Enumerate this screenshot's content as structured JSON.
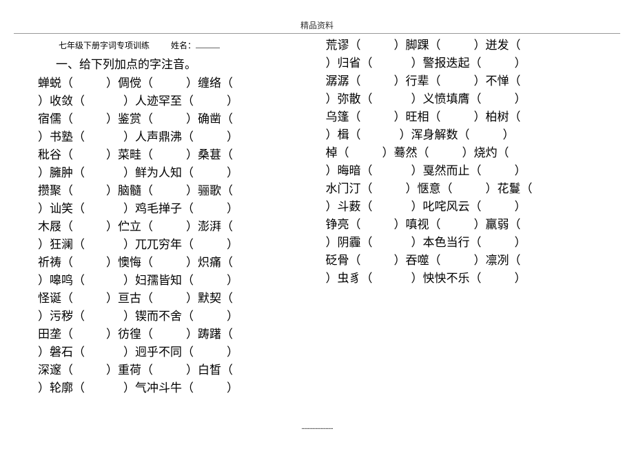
{
  "header": "精品资料",
  "title": "七年级下册字词专项训练",
  "name_label": "姓名：",
  "section_heading": "一、给下列加点的字注音。",
  "footer_dots": "..........................",
  "left_lines": [
    [
      "蝉蜕（",
      "）倜傥（",
      "）缠络（"
    ],
    [
      "）收敛（",
      "）人迹罕至（",
      "）"
    ],
    [
      "宿儒（",
      "）鉴赏（",
      "）确凿（"
    ],
    [
      "）书塾（",
      "）人声鼎沸（",
      "）"
    ],
    [
      "秕谷（",
      "）菜畦（",
      "）桑葚（"
    ],
    [
      "）臃肿（",
      "）鲜为人知（",
      "）"
    ],
    [
      "攒聚（",
      "）脑髓（",
      "）骊歌（"
    ],
    [
      "）讪笑（",
      "）鸡毛掸子（",
      "）"
    ],
    [
      "木屐（",
      "）伫立（",
      "）澎湃（"
    ],
    [
      "）狂澜（",
      "）兀兀穷年（",
      "）"
    ],
    [
      "祈祷（",
      "）懊悔（",
      "）炽痛（"
    ],
    [
      "）嗥鸣（",
      "）妇孺皆知（",
      "）"
    ],
    [
      "怪诞（",
      "）亘古（",
      "）默契（"
    ],
    [
      "）污秽（",
      "）锲而不舍（",
      "）"
    ],
    [
      "田垄（",
      "）彷徨（",
      "）踌躇（"
    ],
    [
      "）磐石（",
      "）迥乎不同（",
      "）"
    ],
    [
      "深邃（",
      "）重荷（",
      "）白皙（"
    ],
    [
      "）轮廓（",
      "）气冲斗牛（",
      "）"
    ]
  ],
  "right_lines": [
    [
      "荒谬（",
      "）脚踝（",
      "）迸发（"
    ],
    [
      "）归省（",
      "）警报迭起（",
      "）"
    ],
    [
      "潺潺（",
      "）行辈（",
      "）不惮（"
    ],
    [
      "）弥散（",
      "）义愤填膺（",
      "）"
    ],
    [
      "乌篷（",
      "）旺相（",
      "）柏树（"
    ],
    [
      "）楫（",
      "）浑身解数（",
      "）"
    ],
    [
      "棹（",
      "）蓦然（",
      "）烧灼（"
    ],
    [
      "）晦暗（",
      "）戛然而止（",
      "）"
    ],
    [
      "水门汀（",
      "）惬意（",
      "）花鬘（"
    ],
    [
      "）斗薮（",
      "）叱咤风云（",
      "）"
    ],
    [
      "铮亮（",
      "）嗔视（",
      "）羸弱（"
    ],
    [
      "）阴霾（",
      "）本色当行（",
      "）"
    ],
    [
      "砭骨（",
      "）吞噬（",
      "）凛冽（"
    ],
    [
      "）虫豸（",
      "）怏怏不乐（",
      "）"
    ]
  ]
}
